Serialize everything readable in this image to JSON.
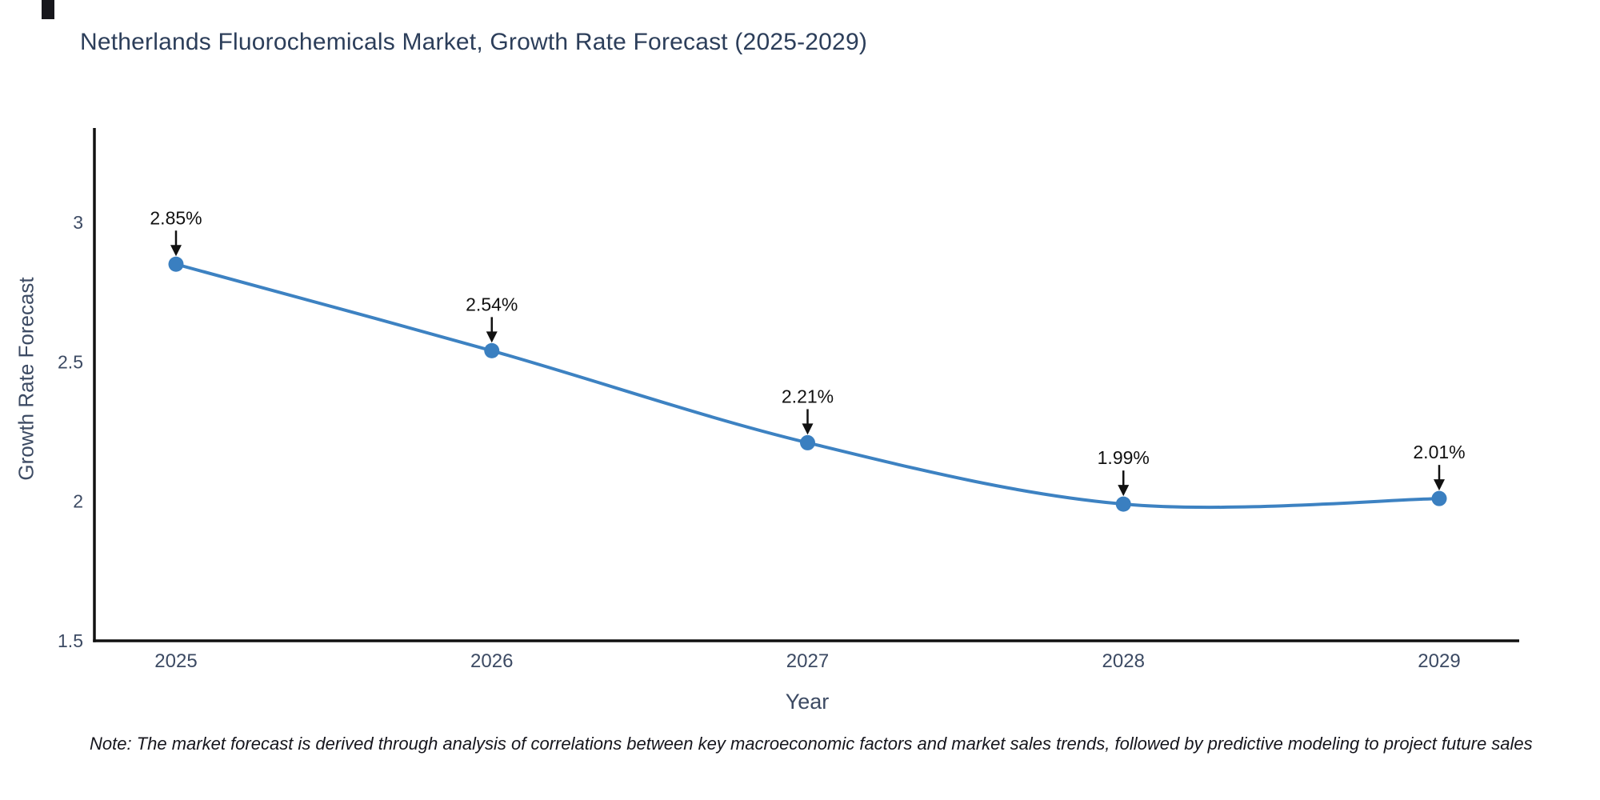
{
  "chart_data": {
    "type": "line",
    "title": "Netherlands Fluorochemicals Market, Growth Rate Forecast (2025-2029)",
    "xlabel": "Year",
    "ylabel": "Growth Rate Forecast",
    "categories": [
      "2025",
      "2026",
      "2027",
      "2028",
      "2029"
    ],
    "values": [
      2.85,
      2.54,
      2.21,
      1.99,
      2.01
    ],
    "point_labels": [
      "2.85%",
      "2.54%",
      "2.21%",
      "1.99%",
      "2.01%"
    ],
    "yticks": [
      1.5,
      2,
      2.5,
      3
    ],
    "ytick_labels": [
      "1.5",
      "2",
      "2.5",
      "3"
    ],
    "ylim": [
      1.5,
      3.34
    ],
    "grid": false,
    "legend": false,
    "line_shape": "spline",
    "note": "Note: The market forecast is derived through analysis of correlations between key macroeconomic factors and market sales trends, followed by predictive modeling to project future sales",
    "colors": {
      "line": "#3d82c2",
      "marker": "#3a7fc0",
      "title_text": "#2c3e5a",
      "axis_text": "#3c4a63",
      "axis_line": "#111111",
      "annotation": "#111111",
      "note_text": "#16161d"
    }
  }
}
